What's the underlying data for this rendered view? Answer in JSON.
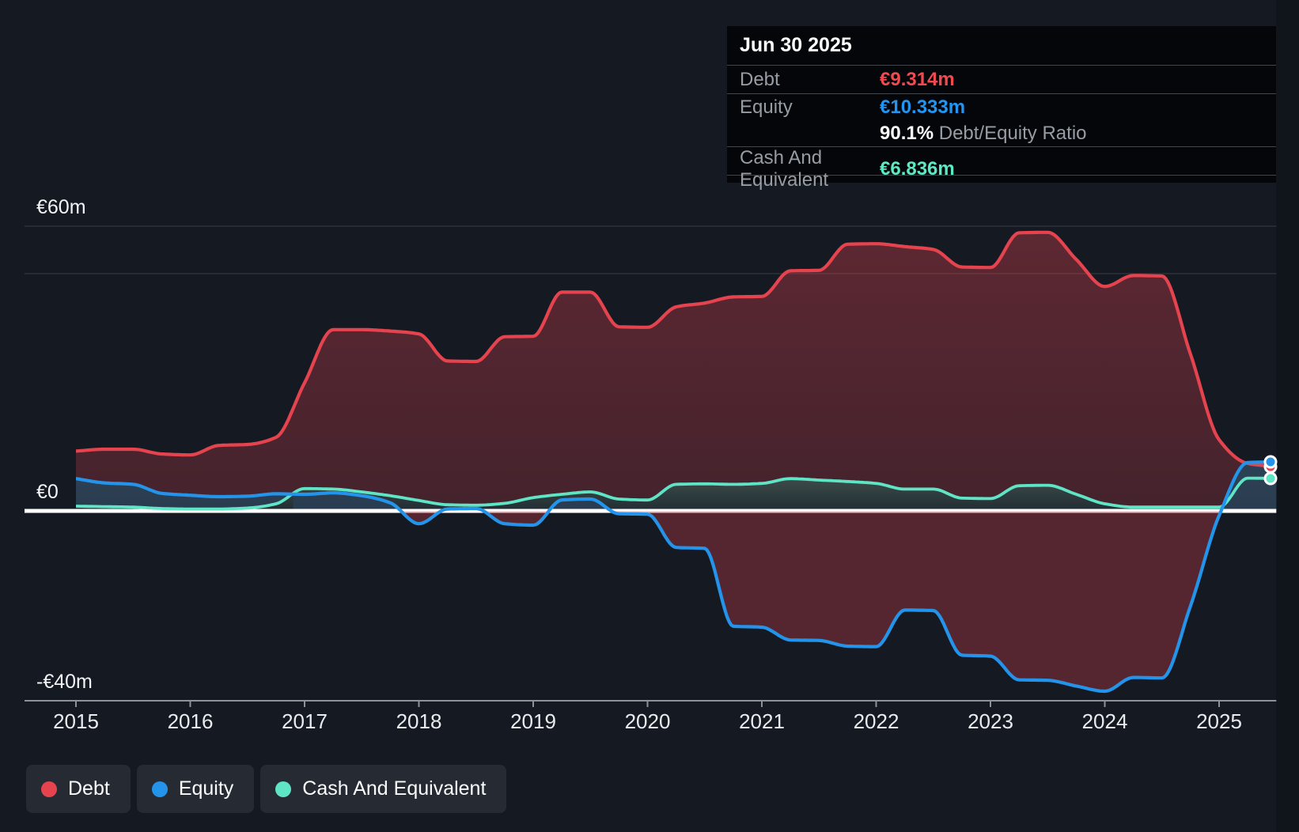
{
  "tooltip": {
    "date": "Jun 30 2025",
    "debt_label": "Debt",
    "debt_value": "€9.314m",
    "equity_label": "Equity",
    "equity_value": "€10.333m",
    "ratio_value": "90.1%",
    "ratio_label": "Debt/Equity Ratio",
    "cash_label": "Cash And Equivalent",
    "cash_value": "€6.836m"
  },
  "legend": {
    "items": [
      {
        "label": "Debt",
        "color": "#e5434e"
      },
      {
        "label": "Equity",
        "color": "#2494ea"
      },
      {
        "label": "Cash And Equivalent",
        "color": "#5fe5c5"
      }
    ]
  },
  "colors": {
    "background": "#151922",
    "right_band": "#10141b",
    "debt": "#e5434e",
    "equity": "#2494ea",
    "cash": "#5fe5c5",
    "debt_value_text": "#ef4a50",
    "equity_value_text": "#2196f3",
    "cash_value_text": "#5ee9c5",
    "debt_area": "#c93e4a",
    "equity_area_top": "#2d4156",
    "equity_area_bottom": "#1e2a37",
    "cash_area_top": "#3d4d4a",
    "cash_area_bottom": "#222c33",
    "zero_line": "#ffffff",
    "gridline": "#272c34",
    "axis": "#8b929b",
    "axis_text": "#e9ebee",
    "ylabel_text": "#f2f4f6"
  },
  "chart_data": {
    "type": "area",
    "title": "",
    "xlabel": "",
    "ylabel": "",
    "x_unit": "year (quarterly points)",
    "y_unit": "€ millions",
    "ylim": [
      -40,
      60
    ],
    "legend_position": "bottom-left",
    "grid": "partial",
    "x": [
      2015,
      2015.25,
      2015.5,
      2015.75,
      2016,
      2016.25,
      2016.5,
      2016.75,
      2017,
      2017.25,
      2017.5,
      2017.75,
      2018,
      2018.25,
      2018.5,
      2018.75,
      2019,
      2019.25,
      2019.5,
      2019.75,
      2020,
      2020.25,
      2020.5,
      2020.75,
      2021,
      2021.25,
      2021.5,
      2021.75,
      2022,
      2022.25,
      2022.5,
      2022.75,
      2023,
      2023.25,
      2023.5,
      2023.75,
      2024,
      2024.25,
      2024.5,
      2024.75,
      2025,
      2025.25,
      2025.5
    ],
    "series": [
      {
        "name": "Debt",
        "values": [
          12.6,
          13,
          13,
          12,
          11.8,
          13.8,
          14,
          15.5,
          27,
          38.2,
          38.2,
          37.9,
          37.3,
          31.6,
          31.5,
          36.7,
          36.8,
          46.1,
          46.1,
          38.8,
          38.7,
          43,
          43.8,
          45.1,
          45.2,
          50.6,
          50.7,
          56.2,
          56.3,
          55.7,
          55.1,
          51.4,
          51.3,
          58.6,
          58.7,
          53,
          47.3,
          49.6,
          49.5,
          33,
          15,
          10,
          9.314
        ]
      },
      {
        "name": "Equity",
        "values": [
          6.8,
          5.9,
          5.6,
          3.7,
          3.3,
          3,
          3.1,
          3.6,
          3.5,
          3.8,
          3.2,
          1.7,
          -2.7,
          0.4,
          0.5,
          -2.7,
          -3,
          2.3,
          2.5,
          -0.6,
          -0.7,
          -7.7,
          -7.9,
          -24.3,
          -24.5,
          -27.2,
          -27.3,
          -28.5,
          -28.6,
          -20.9,
          -21,
          -30.4,
          -30.6,
          -35.6,
          -35.7,
          -36.9,
          -38,
          -35.1,
          -35.2,
          -20,
          -1,
          10.2,
          10.333
        ]
      },
      {
        "name": "Cash And Equivalent",
        "values": [
          1,
          0.9,
          0.8,
          0.5,
          0.4,
          0.4,
          0.6,
          1.5,
          4.7,
          4.6,
          4,
          3.2,
          2.2,
          1.3,
          1.2,
          1.6,
          2.8,
          3.5,
          4,
          2.5,
          2.3,
          5.6,
          5.7,
          5.6,
          5.8,
          6.8,
          6.5,
          6.2,
          5.8,
          4.6,
          4.6,
          2.7,
          2.6,
          5.3,
          5.4,
          3.5,
          1.5,
          0.8,
          0.8,
          0.8,
          0.8,
          6.9,
          6.836
        ]
      }
    ],
    "y_ticks": [
      {
        "label": "€60m",
        "value": 60
      },
      {
        "label": "€0",
        "value": 0
      },
      {
        "label": "-€40m",
        "value": -40
      }
    ],
    "y_gridlines": [
      60,
      50
    ],
    "x_ticks": [
      2015,
      2016,
      2017,
      2018,
      2019,
      2020,
      2021,
      2022,
      2023,
      2024,
      2025
    ],
    "end_markers": [
      {
        "series": "Debt",
        "x": 2025.5,
        "value": 9.314
      },
      {
        "series": "Cash And Equivalent",
        "x": 2025.5,
        "value": 6.836
      },
      {
        "series": "Equity",
        "x": 2025.5,
        "value": 10.333
      }
    ]
  }
}
